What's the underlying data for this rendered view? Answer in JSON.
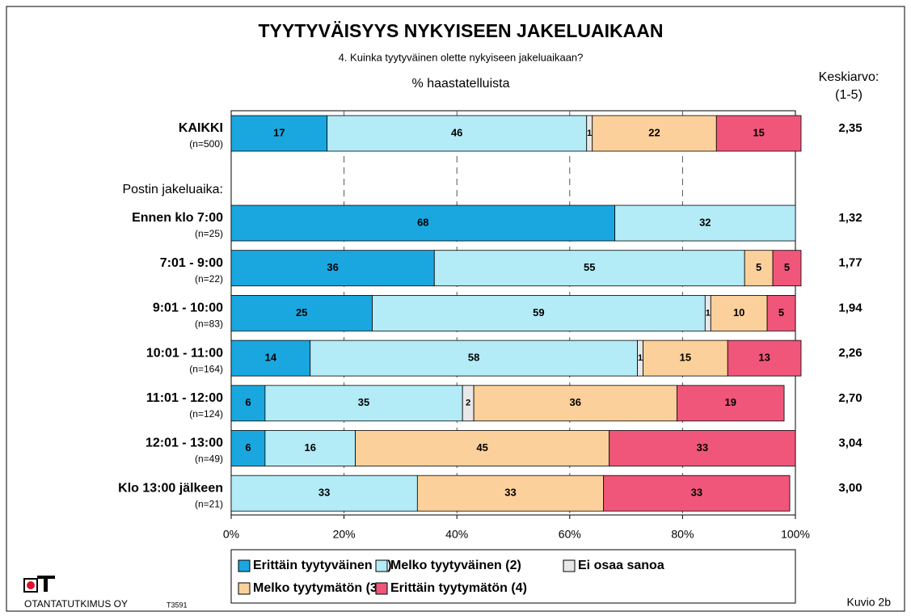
{
  "chart_data": {
    "type": "stacked_bar_horizontal",
    "title": "TYYTYVÄISYYS NYKYISEEN JAKELUAIKAAN",
    "subtitle": "4. Kuinka tyytyväinen olette nykyiseen jakeluaikaan?",
    "axis_label": "% haastatelluista",
    "mean_header": [
      "Keskiarvo:",
      "(1-5)"
    ],
    "group_label": "Postin jakeluaika:",
    "categories": [
      "KAIKKI",
      "Ennen klo 7:00",
      "7:01 - 9:00",
      "9:01 - 10:00",
      "10:01 - 11:00",
      "11:01 - 12:00",
      "12:01 - 13:00",
      "Klo 13:00 jälkeen"
    ],
    "n_labels": [
      "(n=500)",
      "(n=25)",
      "(n=22)",
      "(n=83)",
      "(n=164)",
      "(n=124)",
      "(n=49)",
      "(n=21)"
    ],
    "means": [
      "2,35",
      "1,32",
      "1,77",
      "1,94",
      "2,26",
      "2,70",
      "3,04",
      "3,00"
    ],
    "series": [
      {
        "name": "Erittäin tyytyväinen (1)",
        "color": "#1aa7e0",
        "values": [
          17,
          68,
          36,
          25,
          14,
          6,
          6,
          null
        ]
      },
      {
        "name": "Melko tyytyväinen (2)",
        "color": "#b3ebf7",
        "values": [
          46,
          32,
          55,
          59,
          58,
          35,
          16,
          33
        ]
      },
      {
        "name": "Ei osaa sanoa",
        "color": "#e8e8e8",
        "values": [
          1,
          null,
          null,
          1,
          1,
          2,
          null,
          null
        ]
      },
      {
        "name": "Melko tyytymätön (3)",
        "color": "#fcd09a",
        "values": [
          22,
          null,
          5,
          10,
          15,
          36,
          45,
          33
        ]
      },
      {
        "name": "Erittäin tyytymätön (4)",
        "color": "#f0567a",
        "values": [
          15,
          null,
          5,
          5,
          13,
          19,
          33,
          33
        ]
      }
    ],
    "xlim": [
      0,
      100
    ],
    "xticks": [
      {
        "value": 0,
        "label": "0%"
      },
      {
        "value": 20,
        "label": "20%"
      },
      {
        "value": 40,
        "label": "40%"
      },
      {
        "value": 60,
        "label": "60%"
      },
      {
        "value": 80,
        "label": "80%"
      },
      {
        "value": 100,
        "label": "100%"
      }
    ],
    "grid": true,
    "company": "OTANTATUTKIMUS OY",
    "code": "T3591",
    "figure_label": "Kuvio 2b"
  }
}
